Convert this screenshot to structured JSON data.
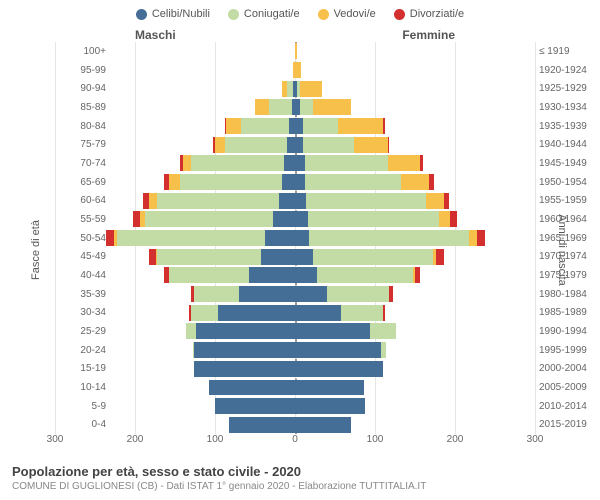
{
  "chart": {
    "type": "population-pyramid",
    "background_color": "#ffffff",
    "grid_color": "#e5e5e5",
    "legend": [
      {
        "label": "Celibi/Nubili",
        "color": "#456e96"
      },
      {
        "label": "Coniugati/e",
        "color": "#c3dba5"
      },
      {
        "label": "Vedovi/e",
        "color": "#f7c04a"
      },
      {
        "label": "Divorziati/e",
        "color": "#d32f2f"
      }
    ],
    "titles": {
      "male": "Maschi",
      "female": "Femmine"
    },
    "y_axis_left_title": "Fasce di età",
    "y_axis_right_title": "Anni di nascita",
    "x_max": 300,
    "x_ticks": [
      300,
      200,
      100,
      0,
      0,
      100,
      200,
      300
    ],
    "rows": [
      {
        "age": "100+",
        "birth": "≤ 1919",
        "m": {
          "c": 0,
          "co": 0,
          "v": 0,
          "d": 0
        },
        "f": {
          "c": 0,
          "co": 0,
          "v": 2,
          "d": 0
        }
      },
      {
        "age": "95-99",
        "birth": "1920-1924",
        "m": {
          "c": 0,
          "co": 0,
          "v": 2,
          "d": 0
        },
        "f": {
          "c": 0,
          "co": 0,
          "v": 8,
          "d": 0
        }
      },
      {
        "age": "90-94",
        "birth": "1925-1929",
        "m": {
          "c": 2,
          "co": 8,
          "v": 6,
          "d": 0
        },
        "f": {
          "c": 2,
          "co": 4,
          "v": 28,
          "d": 0
        }
      },
      {
        "age": "85-89",
        "birth": "1930-1934",
        "m": {
          "c": 4,
          "co": 28,
          "v": 18,
          "d": 0
        },
        "f": {
          "c": 6,
          "co": 16,
          "v": 48,
          "d": 0
        }
      },
      {
        "age": "80-84",
        "birth": "1935-1939",
        "m": {
          "c": 8,
          "co": 60,
          "v": 18,
          "d": 2
        },
        "f": {
          "c": 10,
          "co": 44,
          "v": 56,
          "d": 2
        }
      },
      {
        "age": "75-79",
        "birth": "1940-1944",
        "m": {
          "c": 10,
          "co": 78,
          "v": 12,
          "d": 2
        },
        "f": {
          "c": 10,
          "co": 64,
          "v": 42,
          "d": 2
        }
      },
      {
        "age": "70-74",
        "birth": "1945-1949",
        "m": {
          "c": 14,
          "co": 116,
          "v": 10,
          "d": 4
        },
        "f": {
          "c": 12,
          "co": 104,
          "v": 40,
          "d": 4
        }
      },
      {
        "age": "65-69",
        "birth": "1950-1954",
        "m": {
          "c": 16,
          "co": 128,
          "v": 14,
          "d": 6
        },
        "f": {
          "c": 12,
          "co": 120,
          "v": 36,
          "d": 6
        }
      },
      {
        "age": "60-64",
        "birth": "1955-1959",
        "m": {
          "c": 20,
          "co": 152,
          "v": 10,
          "d": 8
        },
        "f": {
          "c": 14,
          "co": 150,
          "v": 22,
          "d": 6
        }
      },
      {
        "age": "55-59",
        "birth": "1960-1964",
        "m": {
          "c": 28,
          "co": 160,
          "v": 6,
          "d": 8
        },
        "f": {
          "c": 16,
          "co": 164,
          "v": 14,
          "d": 8
        }
      },
      {
        "age": "50-54",
        "birth": "1965-1969",
        "m": {
          "c": 38,
          "co": 184,
          "v": 4,
          "d": 10
        },
        "f": {
          "c": 18,
          "co": 200,
          "v": 10,
          "d": 10
        }
      },
      {
        "age": "45-49",
        "birth": "1970-1974",
        "m": {
          "c": 42,
          "co": 130,
          "v": 2,
          "d": 8
        },
        "f": {
          "c": 22,
          "co": 150,
          "v": 4,
          "d": 10
        }
      },
      {
        "age": "40-44",
        "birth": "1975-1979",
        "m": {
          "c": 58,
          "co": 100,
          "v": 0,
          "d": 6
        },
        "f": {
          "c": 28,
          "co": 120,
          "v": 2,
          "d": 6
        }
      },
      {
        "age": "35-39",
        "birth": "1980-1984",
        "m": {
          "c": 70,
          "co": 56,
          "v": 0,
          "d": 4
        },
        "f": {
          "c": 40,
          "co": 78,
          "v": 0,
          "d": 4
        }
      },
      {
        "age": "30-34",
        "birth": "1985-1989",
        "m": {
          "c": 96,
          "co": 34,
          "v": 0,
          "d": 2
        },
        "f": {
          "c": 58,
          "co": 52,
          "v": 0,
          "d": 2
        }
      },
      {
        "age": "25-29",
        "birth": "1990-1994",
        "m": {
          "c": 124,
          "co": 12,
          "v": 0,
          "d": 0
        },
        "f": {
          "c": 94,
          "co": 32,
          "v": 0,
          "d": 0
        }
      },
      {
        "age": "20-24",
        "birth": "1995-1999",
        "m": {
          "c": 126,
          "co": 2,
          "v": 0,
          "d": 0
        },
        "f": {
          "c": 108,
          "co": 6,
          "v": 0,
          "d": 0
        }
      },
      {
        "age": "15-19",
        "birth": "2000-2004",
        "m": {
          "c": 126,
          "co": 0,
          "v": 0,
          "d": 0
        },
        "f": {
          "c": 110,
          "co": 0,
          "v": 0,
          "d": 0
        }
      },
      {
        "age": "10-14",
        "birth": "2005-2009",
        "m": {
          "c": 108,
          "co": 0,
          "v": 0,
          "d": 0
        },
        "f": {
          "c": 86,
          "co": 0,
          "v": 0,
          "d": 0
        }
      },
      {
        "age": "5-9",
        "birth": "2010-2014",
        "m": {
          "c": 100,
          "co": 0,
          "v": 0,
          "d": 0
        },
        "f": {
          "c": 88,
          "co": 0,
          "v": 0,
          "d": 0
        }
      },
      {
        "age": "0-4",
        "birth": "2015-2019",
        "m": {
          "c": 82,
          "co": 0,
          "v": 0,
          "d": 0
        },
        "f": {
          "c": 70,
          "co": 0,
          "v": 0,
          "d": 0
        }
      }
    ],
    "footer_title": "Popolazione per età, sesso e stato civile - 2020",
    "footer_sub": "COMUNE DI GUGLIONESI (CB) - Dati ISTAT 1° gennaio 2020 - Elaborazione TUTTITALIA.IT"
  }
}
